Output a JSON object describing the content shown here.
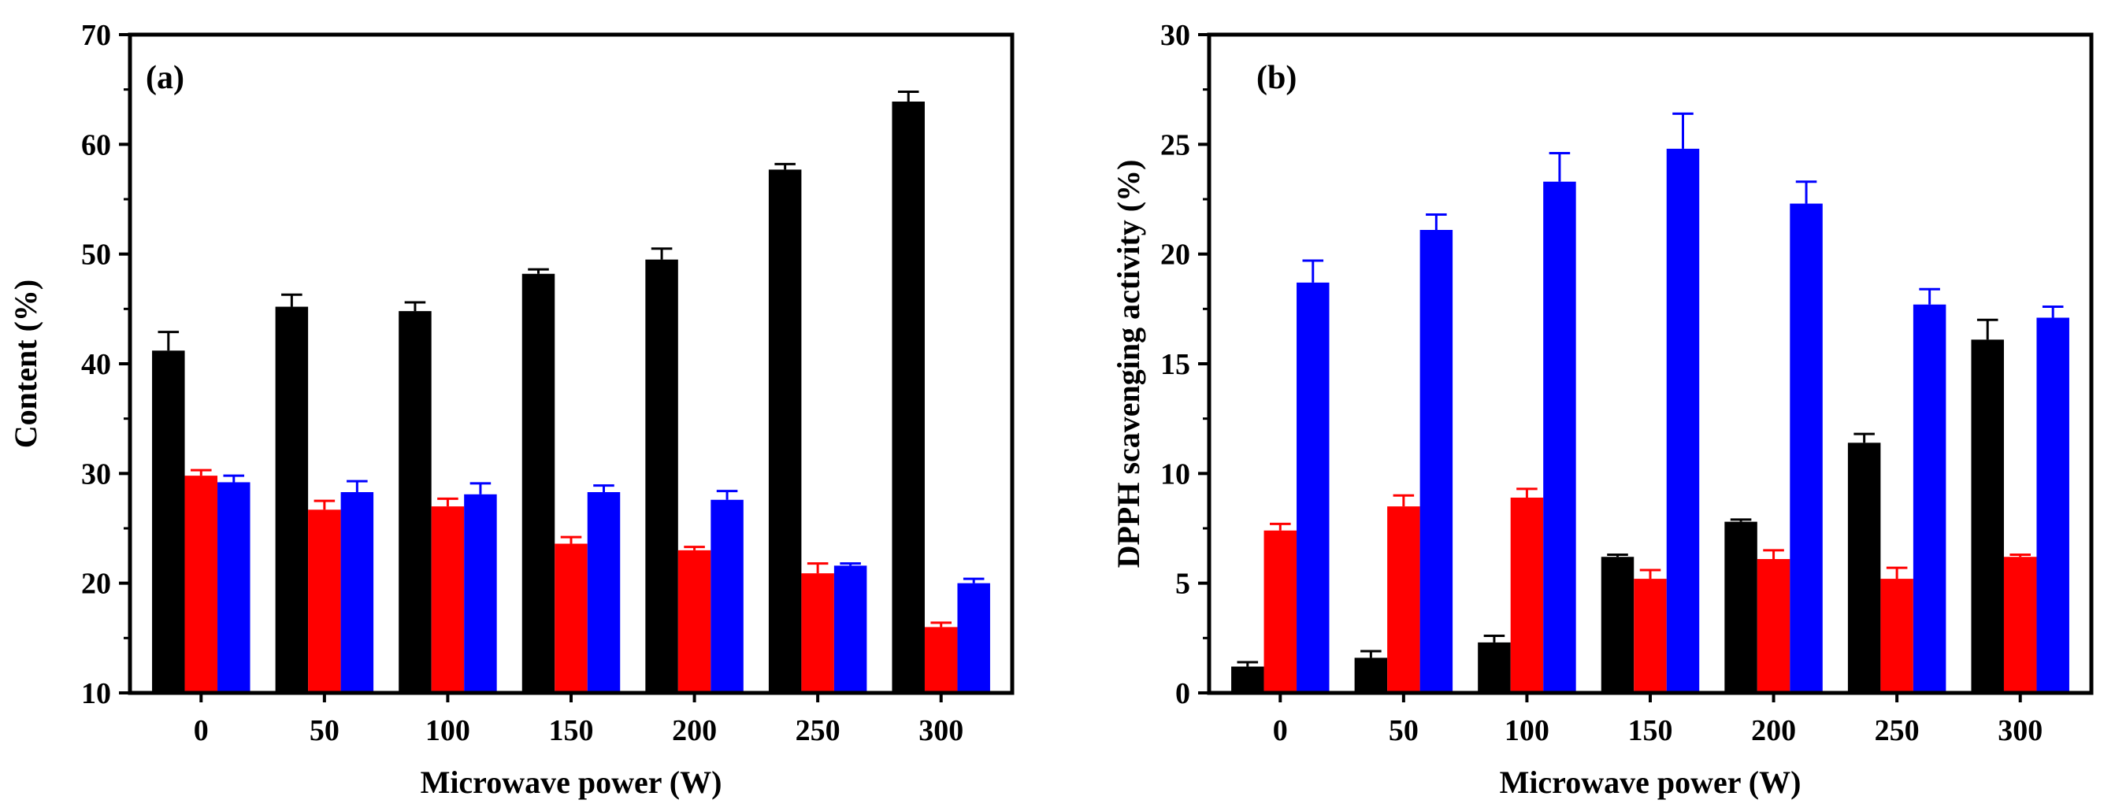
{
  "chart_data": [
    {
      "type": "bar",
      "panel_label": "(a)",
      "title": "",
      "xlabel": "Microwave power (W)",
      "ylabel": "Content (%)",
      "ylim": [
        10,
        70
      ],
      "yticks": [
        "10",
        "20",
        "30",
        "40",
        "50",
        "60",
        "70"
      ],
      "categories": [
        "0",
        "50",
        "100",
        "150",
        "200",
        "250",
        "300"
      ],
      "legend": "none",
      "series": [
        {
          "name": "black",
          "color": "#000000",
          "values": [
            41.2,
            45.2,
            44.8,
            48.2,
            49.5,
            57.7,
            63.9
          ],
          "errors": [
            1.7,
            1.1,
            0.8,
            0.4,
            1.0,
            0.5,
            0.9
          ]
        },
        {
          "name": "red",
          "color": "#ff0000",
          "values": [
            29.8,
            26.7,
            27.0,
            23.6,
            23.0,
            20.9,
            16.0
          ],
          "errors": [
            0.5,
            0.8,
            0.7,
            0.6,
            0.3,
            0.9,
            0.4
          ]
        },
        {
          "name": "blue",
          "color": "#0000ff",
          "values": [
            29.2,
            28.3,
            28.1,
            28.3,
            27.6,
            21.6,
            20.0
          ],
          "errors": [
            0.6,
            1.0,
            1.0,
            0.6,
            0.8,
            0.2,
            0.4
          ]
        }
      ]
    },
    {
      "type": "bar",
      "panel_label": "(b)",
      "title": "",
      "xlabel": "Microwave power (W)",
      "ylabel": "DPPH scavenging activity (%)",
      "ylim": [
        0,
        30
      ],
      "yticks": [
        "0",
        "5",
        "10",
        "15",
        "20",
        "25",
        "30"
      ],
      "categories": [
        "0",
        "50",
        "100",
        "150",
        "200",
        "250",
        "300"
      ],
      "legend": "none",
      "series": [
        {
          "name": "black",
          "color": "#000000",
          "values": [
            1.2,
            1.6,
            2.3,
            6.2,
            7.8,
            11.4,
            16.1
          ],
          "errors": [
            0.2,
            0.3,
            0.3,
            0.1,
            0.1,
            0.4,
            0.9
          ]
        },
        {
          "name": "red",
          "color": "#ff0000",
          "values": [
            7.4,
            8.5,
            8.9,
            5.2,
            6.1,
            5.2,
            6.2
          ],
          "errors": [
            0.3,
            0.5,
            0.4,
            0.4,
            0.4,
            0.5,
            0.1
          ]
        },
        {
          "name": "blue",
          "color": "#0000ff",
          "values": [
            18.7,
            21.1,
            23.3,
            24.8,
            22.3,
            17.7,
            17.1
          ],
          "errors": [
            1.0,
            0.7,
            1.3,
            1.6,
            1.0,
            0.7,
            0.5
          ]
        }
      ]
    }
  ]
}
